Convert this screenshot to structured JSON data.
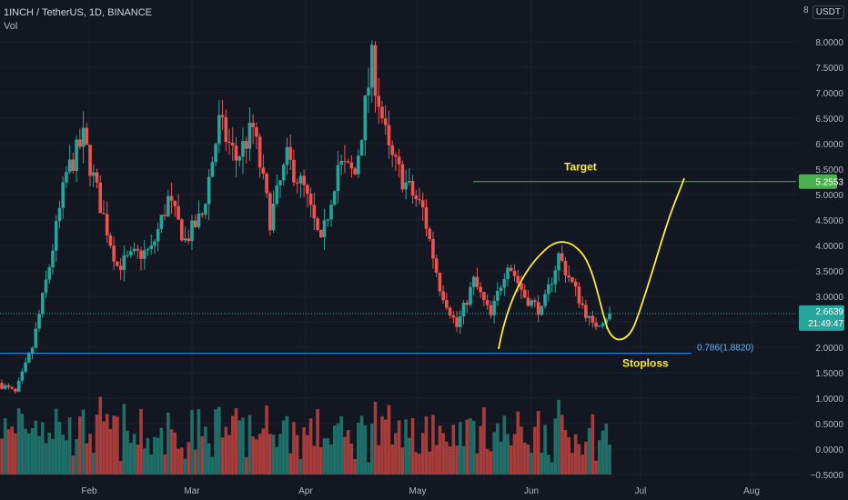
{
  "header": {
    "title": "1INCH / TetherUS, 1D, BINANCE",
    "volume_label": "Vol",
    "currency": "USDT",
    "axis_top_label": "8"
  },
  "colors": {
    "background": "#131722",
    "up": "#26a69a",
    "down": "#ef5350",
    "vol_up": "#1f6f68",
    "vol_down": "#a63d3d",
    "target_line": "#4caf50",
    "stoploss_line": "#2196f3",
    "annotation": "#ffeb3b",
    "axis_text": "#b2b5be"
  },
  "chart_data": {
    "type": "candlestick",
    "x_axis": {
      "tick_labels": [
        "Feb",
        "Mar",
        "Apr",
        "May",
        "Jun",
        "Jul",
        "Aug"
      ]
    },
    "y_axis": {
      "scale": "linear",
      "tick_labels": [
        "8.0000",
        "7.5000",
        "7.0000",
        "6.5000",
        "6.0000",
        "5.5000",
        "5.0000",
        "4.5000",
        "4.0000",
        "3.5000",
        "3.0000",
        "2.5000",
        "2.0000",
        "1.5000",
        "1.0000",
        "0.5000",
        "0.0000",
        "−0.5000"
      ],
      "ticks": [
        8,
        7.5,
        7,
        6.5,
        6,
        5.5,
        5,
        4.5,
        4,
        3.5,
        3,
        2.5,
        2,
        1.5,
        1,
        0.5,
        0,
        -0.5
      ],
      "range": [
        -0.5,
        8.5
      ]
    },
    "series": [
      {
        "kind": "price",
        "segments": [
          {
            "from": 1.3,
            "to": 1.1
          },
          {
            "from": 1.1,
            "to": 2.0
          },
          {
            "from": 2.0,
            "to": 3.6
          },
          {
            "from": 3.6,
            "to": 5.4
          },
          {
            "from": 5.4,
            "to": 6.1
          },
          {
            "from": 6.1,
            "to": 4.8
          },
          {
            "from": 4.8,
            "to": 3.6
          },
          {
            "from": 3.6,
            "to": 3.8
          },
          {
            "from": 3.8,
            "to": 3.9
          },
          {
            "from": 3.9,
            "to": 4.9
          },
          {
            "from": 4.9,
            "to": 4.1
          },
          {
            "from": 4.1,
            "to": 4.6
          },
          {
            "from": 4.6,
            "to": 6.4
          },
          {
            "from": 6.4,
            "to": 5.7
          },
          {
            "from": 5.7,
            "to": 6.3
          },
          {
            "from": 6.3,
            "to": 4.5
          },
          {
            "from": 4.5,
            "to": 5.7
          },
          {
            "from": 5.7,
            "to": 5.1
          },
          {
            "from": 5.1,
            "to": 4.0
          },
          {
            "from": 4.0,
            "to": 5.6
          },
          {
            "from": 5.6,
            "to": 5.4
          },
          {
            "from": 5.4,
            "to": 7.6
          },
          {
            "from": 7.6,
            "to": 5.8
          },
          {
            "from": 5.8,
            "to": 5.2
          },
          {
            "from": 5.2,
            "to": 4.7
          },
          {
            "from": 4.7,
            "to": 3.2
          },
          {
            "from": 3.2,
            "to": 2.4
          },
          {
            "from": 2.4,
            "to": 3.3
          },
          {
            "from": 3.3,
            "to": 2.6
          },
          {
            "from": 2.6,
            "to": 3.7
          },
          {
            "from": 3.7,
            "to": 3.0
          },
          {
            "from": 3.0,
            "to": 2.7
          },
          {
            "from": 2.7,
            "to": 3.8
          },
          {
            "from": 3.8,
            "to": 3.1
          },
          {
            "from": 3.1,
            "to": 2.4
          },
          {
            "from": 2.4,
            "to": 2.66
          }
        ],
        "last_price": 2.6639,
        "last_price_label": "2.6639",
        "countdown": "21:49:47"
      },
      {
        "kind": "volume",
        "values": []
      }
    ],
    "annotations": {
      "target": {
        "label": "Target",
        "price": 5.2553,
        "price_label": "5.2553"
      },
      "stoploss": {
        "label": "Stoploss",
        "fib_label": "0.786(1.8820)",
        "price": 1.882
      }
    }
  }
}
